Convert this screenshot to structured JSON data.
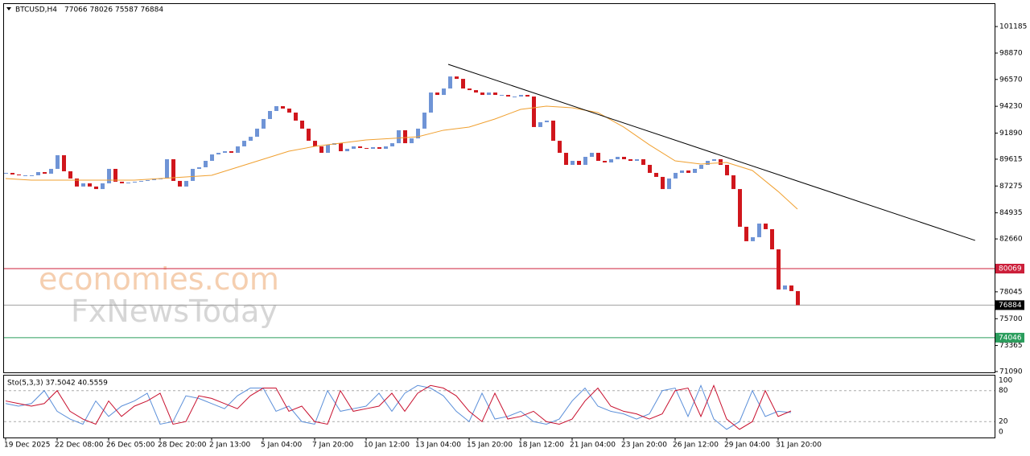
{
  "chart_data": {
    "type": "candlestick",
    "symbol": "BTCUSD,H4",
    "ohlc": "77066 78026 75587 76884",
    "watermark": [
      "economies.com",
      "FxNewsToday"
    ],
    "categories": [
      "19 Dec 2025",
      null,
      null,
      null,
      null,
      null,
      null,
      null,
      "22 Dec 08:00",
      null,
      null,
      null,
      null,
      null,
      null,
      null,
      "26 Dec 05:00",
      null,
      null,
      null,
      null,
      null,
      null,
      null,
      "28 Dec 20:00",
      null,
      null,
      null,
      null,
      null,
      null,
      null,
      "2 Jan 13:00",
      null,
      null,
      null,
      null,
      null,
      null,
      null,
      "5 Jan 04:00",
      null,
      null,
      null,
      null,
      null,
      null,
      null,
      "7 Jan 20:00",
      null,
      null,
      null,
      null,
      null,
      null,
      null,
      "10 Jan 12:00",
      null,
      null,
      null,
      null,
      null,
      null,
      null,
      "13 Jan 04:00",
      null,
      null,
      null,
      null,
      null,
      null,
      null,
      "15 Jan 20:00",
      null,
      null,
      null,
      null,
      null,
      null,
      null,
      "18 Jan 12:00",
      null,
      null,
      null,
      null,
      null,
      null,
      null,
      "21 Jan 04:00",
      null,
      null,
      null,
      null,
      null,
      null,
      null,
      "23 Jan 20:00",
      null,
      null,
      null,
      null,
      null,
      null,
      null,
      "26 Jan 12:00",
      null,
      null,
      null,
      null,
      null,
      null,
      null,
      "29 Jan 04:00",
      null,
      null,
      null,
      null,
      null,
      null,
      null,
      "31 Jan 20:00",
      null,
      null,
      null
    ],
    "close": [
      88420,
      88280,
      88210,
      88210,
      88210,
      88490,
      88350,
      88770,
      89960,
      88560,
      87930,
      87230,
      87510,
      87230,
      87010,
      87510,
      88770,
      87650,
      87510,
      87580,
      87650,
      87720,
      87790,
      87930,
      87930,
      89610,
      87720,
      87230,
      87720,
      88770,
      88910,
      89470,
      90030,
      90170,
      90310,
      90170,
      90730,
      91220,
      91570,
      92280,
      93120,
      93820,
      94240,
      94030,
      93680,
      92980,
      92280,
      91220,
      90730,
      90170,
      90870,
      91010,
      90310,
      90520,
      90730,
      90590,
      90520,
      90660,
      90520,
      90730,
      91010,
      92140,
      91010,
      91430,
      92280,
      93680,
      95430,
      95220,
      95780,
      96830,
      96620,
      95780,
      95640,
      95430,
      95220,
      95430,
      95220,
      95220,
      95080,
      95080,
      95220,
      95080,
      92420,
      92840,
      92980,
      91220,
      90170,
      89120,
      89470,
      89120,
      89820,
      90170,
      89470,
      89330,
      89610,
      89820,
      89610,
      89470,
      89610,
      89120,
      88420,
      88070,
      87010,
      87930,
      88420,
      88630,
      88420,
      88770,
      89120,
      89470,
      89610,
      89120,
      88210,
      87010,
      83720,
      82460,
      82810,
      84000,
      83510,
      81750,
      78250,
      78600,
      78110,
      76884
    ],
    "bull_color": "#6f94d6",
    "bear_color": "#d0161c",
    "ma": {
      "color": "#f0a030",
      "x": [
        0,
        4,
        8,
        12,
        16,
        20,
        24,
        28,
        32,
        36,
        40,
        44,
        48,
        52,
        56,
        60,
        64,
        68,
        72,
        76,
        80,
        84,
        88,
        92,
        96,
        100,
        104,
        108,
        112,
        116,
        120,
        123
      ],
      "values": [
        87930,
        87790,
        87790,
        87790,
        87790,
        87790,
        87930,
        88070,
        88210,
        88910,
        89610,
        90310,
        90730,
        91010,
        91290,
        91430,
        91570,
        92140,
        92420,
        93120,
        93960,
        94240,
        94100,
        93680,
        92420,
        90870,
        89470,
        89190,
        89330,
        88630,
        86800,
        85260
      ]
    },
    "trendline": {
      "color": "#000000",
      "x": [
        68.75,
        150.6
      ],
      "values": [
        97890,
        82530
      ]
    },
    "ylim": [
      71020,
      103150
    ],
    "yticks": [
      101185,
      98870,
      96570,
      94230,
      91890,
      89615,
      87275,
      84935,
      82660,
      78045,
      75700,
      73365,
      71090
    ],
    "levels": [
      {
        "value": 80069,
        "color": "#cc1f3a",
        "label_bg": "#cc1f3a"
      },
      {
        "value": 76884,
        "color": "#a0a0a0",
        "label_bg": "#000000"
      },
      {
        "value": 74046,
        "color": "#2a9d5c",
        "label_bg": "#2a9d5c"
      }
    ],
    "oscillator": {
      "title": "Sto(5,3,3) 37.5042 40.5559",
      "ylim": [
        -10.8,
        109.2
      ],
      "yticks": [
        100,
        80,
        20,
        0
      ],
      "levels": [
        80,
        20
      ],
      "x": [
        0,
        2,
        4,
        6,
        8,
        10,
        12,
        14,
        16,
        18,
        20,
        22,
        24,
        26,
        28,
        30,
        32,
        34,
        36,
        38,
        40,
        42,
        44,
        46,
        48,
        50,
        52,
        54,
        56,
        58,
        60,
        62,
        64,
        66,
        68,
        70,
        72,
        74,
        76,
        78,
        80,
        82,
        84,
        86,
        88,
        90,
        92,
        94,
        96,
        98,
        100,
        102,
        104,
        106,
        108,
        110,
        112,
        114,
        116,
        118,
        120,
        122
      ],
      "series": [
        {
          "color": "#5b8fd9",
          "values": [
            55,
            50,
            55,
            80,
            40,
            25,
            15,
            60,
            30,
            50,
            60,
            75,
            15,
            20,
            70,
            65,
            55,
            45,
            70,
            85,
            85,
            40,
            50,
            20,
            15,
            80,
            40,
            45,
            50,
            75,
            40,
            75,
            90,
            85,
            70,
            40,
            20,
            75,
            25,
            30,
            40,
            20,
            15,
            25,
            60,
            85,
            50,
            40,
            35,
            25,
            35,
            80,
            85,
            30,
            90,
            25,
            5,
            20,
            80,
            30,
            40,
            37.5
          ]
        },
        {
          "color": "#c8102e",
          "values": [
            60,
            55,
            50,
            55,
            80,
            40,
            25,
            15,
            60,
            30,
            50,
            60,
            75,
            15,
            20,
            70,
            65,
            55,
            45,
            70,
            85,
            85,
            40,
            50,
            20,
            15,
            80,
            40,
            45,
            50,
            75,
            40,
            75,
            90,
            85,
            70,
            40,
            20,
            75,
            25,
            30,
            40,
            20,
            15,
            25,
            60,
            85,
            50,
            40,
            35,
            25,
            35,
            80,
            85,
            30,
            90,
            25,
            5,
            20,
            80,
            30,
            40.6
          ]
        }
      ]
    }
  }
}
